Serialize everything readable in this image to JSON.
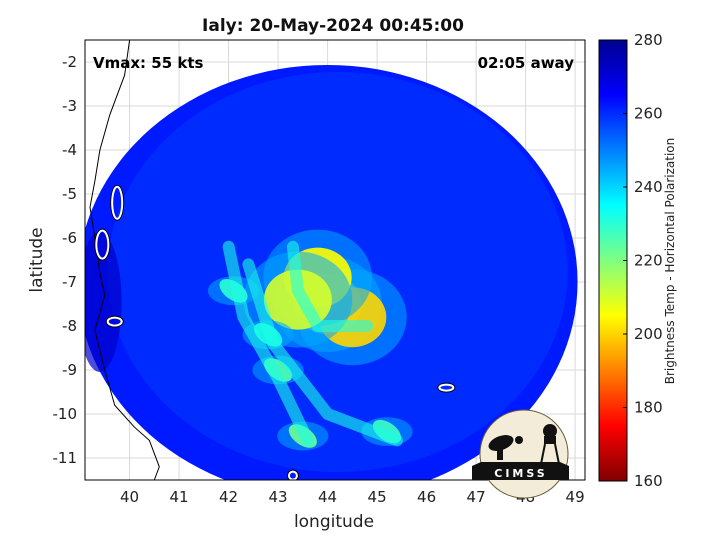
{
  "title": "Ialy: 20-May-2024 00:45:00",
  "vmax_text": "Vmax: 55 kts",
  "time_away_text": "02:05 away",
  "logo_text": "CIMSS",
  "axes": {
    "xlabel": "longitude",
    "ylabel": "latitude",
    "xlim": [
      39.1,
      49.2
    ],
    "ylim": [
      -11.5,
      -1.5
    ],
    "xticks": [
      "40",
      "41",
      "42",
      "43",
      "44",
      "45",
      "46",
      "47",
      "48",
      "49"
    ],
    "yticks": [
      "-2",
      "-3",
      "-4",
      "-5",
      "-6",
      "-7",
      "-8",
      "-9",
      "-10",
      "-11"
    ],
    "grid": true
  },
  "colorbar": {
    "label": "Brightness Temp - Horizontal Polarization",
    "ticks": [
      "280",
      "260",
      "240",
      "220",
      "200",
      "180",
      "160"
    ],
    "range": [
      160,
      280
    ],
    "colors": [
      "#800000",
      "#ff0000",
      "#ff8000",
      "#ffff00",
      "#80ff80",
      "#00ffff",
      "#0080ff",
      "#0000ff",
      "#00008f"
    ]
  },
  "chart_data": {
    "type": "heatmap",
    "title": "Ialy: 20-May-2024 00:45:00",
    "xlabel": "longitude",
    "ylabel": "latitude",
    "variable": "Brightness Temp - Horizontal Polarization",
    "value_range": [
      160,
      280
    ],
    "swath_center": [
      44.0,
      -7.0
    ],
    "background_value": 262,
    "features": [
      {
        "kind": "core",
        "lon": 44.0,
        "lat": -7.5,
        "value": 215
      },
      {
        "kind": "core",
        "lon": 44.5,
        "lat": -7.8,
        "value": 200
      },
      {
        "kind": "core",
        "lon": 43.8,
        "lat": -6.9,
        "value": 205
      },
      {
        "kind": "core",
        "lon": 43.4,
        "lat": -7.4,
        "value": 210
      },
      {
        "kind": "band",
        "lon": 42.8,
        "lat": -8.2,
        "value": 232
      },
      {
        "kind": "band",
        "lon": 43.0,
        "lat": -9.0,
        "value": 225
      },
      {
        "kind": "band",
        "lon": 43.5,
        "lat": -10.5,
        "value": 222
      },
      {
        "kind": "band",
        "lon": 42.1,
        "lat": -7.2,
        "value": 230
      },
      {
        "kind": "band",
        "lon": 45.2,
        "lat": -10.4,
        "value": 228
      }
    ]
  }
}
